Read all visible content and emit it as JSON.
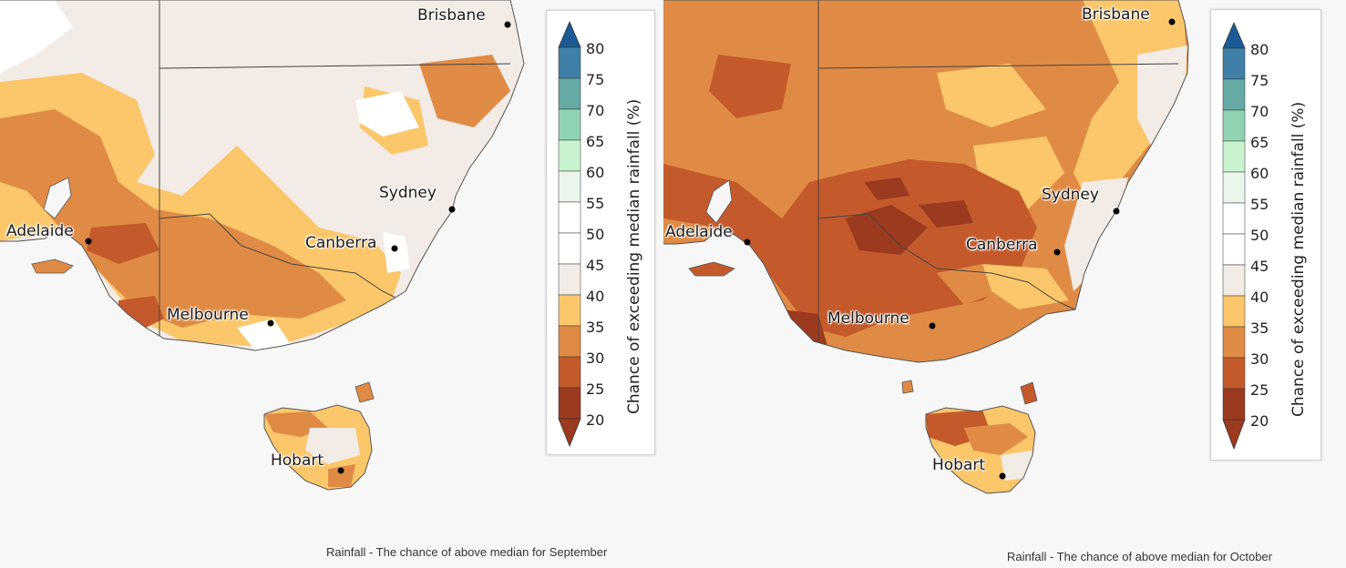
{
  "colors": {
    "bins": [
      "#9c3a1f",
      "#c45a2c",
      "#e08b45",
      "#fbc76a",
      "#f2ebe6",
      "#ffffff",
      "#ffffff",
      "#eaf5ec",
      "#c9f2cf",
      "#8fd3b2",
      "#65aaa4",
      "#3e80a8",
      "#1a5b96"
    ],
    "coast": "#555555",
    "border": "#444444",
    "ocean": "#f7f7f7"
  },
  "legend": {
    "ticks": [
      "80",
      "75",
      "70",
      "65",
      "60",
      "55",
      "50",
      "45",
      "40",
      "35",
      "30",
      "25",
      "20"
    ],
    "label": "Chance of exceeding median rainfall (%)"
  },
  "maps": [
    {
      "month": "September",
      "caption": "Rainfall - The chance of above median for September",
      "cities": [
        "Brisbane",
        "Sydney",
        "Canberra",
        "Adelaide",
        "Melbourne",
        "Hobart"
      ]
    },
    {
      "month": "October",
      "caption": "Rainfall - The chance of above median for October",
      "cities": [
        "Brisbane",
        "Sydney",
        "Canberra",
        "Adelaide",
        "Melbourne",
        "Hobart"
      ]
    }
  ]
}
